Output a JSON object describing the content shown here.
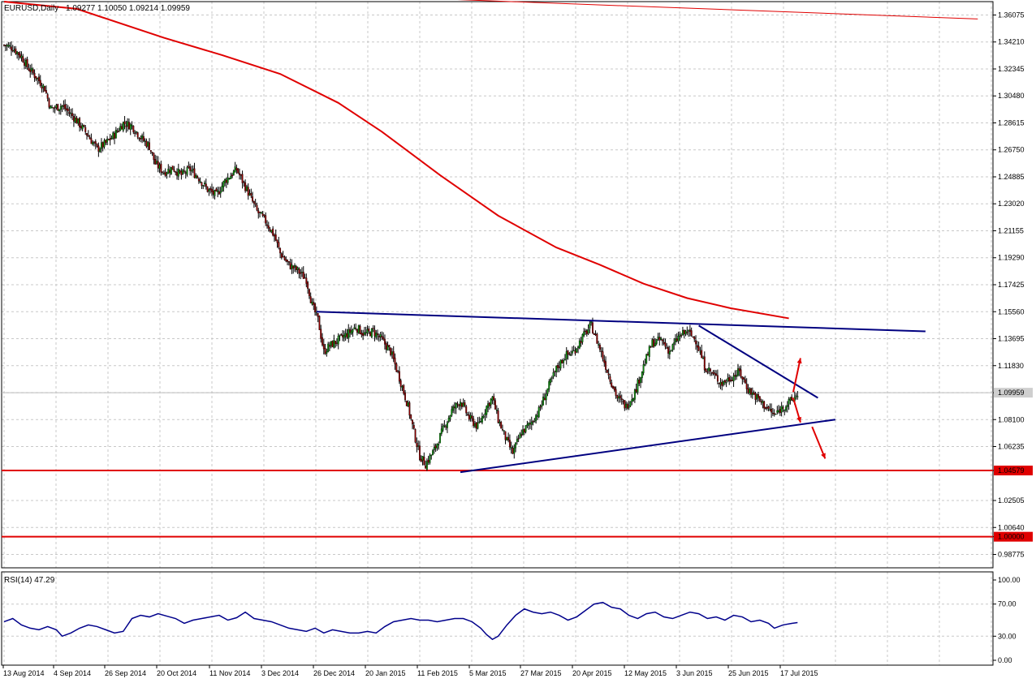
{
  "header": {
    "symbol": "EURUSD,Daily",
    "ohlc": "1.09277 1.10050 1.09214 1.09959"
  },
  "colors": {
    "bull": "#0a8a0a",
    "bear": "#8b0000",
    "ma": "#e00000",
    "trend": "#000080",
    "rsi": "#00008b",
    "grid": "#c8c8c8"
  },
  "chart_data": [
    {
      "type": "candlestick",
      "title": "EURUSD,Daily",
      "y_ticks": [
        "1.36075",
        "1.34210",
        "1.32345",
        "1.30480",
        "1.28615",
        "1.26750",
        "1.24885",
        "1.23020",
        "1.21155",
        "1.19290",
        "1.17425",
        "1.15560",
        "1.13695",
        "1.11830",
        "1.09959",
        "1.08100",
        "1.06235",
        "1.04579",
        "1.02505",
        "1.00640",
        "1.00000",
        "0.98775"
      ],
      "ylim": [
        0.9785,
        1.37
      ],
      "x_ticks": [
        "13 Aug 2014",
        "4 Sep 2014",
        "26 Sep 2014",
        "20 Oct 2014",
        "11 Nov 2014",
        "3 Dec 2014",
        "26 Dec 2014",
        "20 Jan 2015",
        "11 Feb 2015",
        "5 Mar 2015",
        "27 Mar 2015",
        "20 Apr 2015",
        "12 May 2015",
        "3 Jun 2015",
        "25 Jun 2015",
        "17 Jul 2015"
      ],
      "current_price": 1.09959,
      "horizontal_levels": [
        1.04579,
        1.0
      ],
      "close_path": [
        [
          0,
          1.34
        ],
        [
          6,
          1.338
        ],
        [
          12,
          1.332
        ],
        [
          16,
          1.325
        ],
        [
          22,
          1.318
        ],
        [
          28,
          1.31
        ],
        [
          32,
          1.296
        ],
        [
          40,
          1.298
        ],
        [
          48,
          1.29
        ],
        [
          56,
          1.28
        ],
        [
          64,
          1.268
        ],
        [
          70,
          1.272
        ],
        [
          76,
          1.278
        ],
        [
          82,
          1.286
        ],
        [
          88,
          1.284
        ],
        [
          94,
          1.276
        ],
        [
          100,
          1.27
        ],
        [
          104,
          1.258
        ],
        [
          110,
          1.252
        ],
        [
          116,
          1.255
        ],
        [
          122,
          1.25
        ],
        [
          128,
          1.254
        ],
        [
          134,
          1.248
        ],
        [
          140,
          1.24
        ],
        [
          146,
          1.236
        ],
        [
          152,
          1.246
        ],
        [
          160,
          1.254
        ],
        [
          168,
          1.238
        ],
        [
          174,
          1.225
        ],
        [
          180,
          1.218
        ],
        [
          186,
          1.208
        ],
        [
          190,
          1.196
        ],
        [
          196,
          1.188
        ],
        [
          202,
          1.184
        ],
        [
          208,
          1.178
        ],
        [
          212,
          1.16
        ],
        [
          216,
          1.15
        ],
        [
          220,
          1.128
        ],
        [
          224,
          1.132
        ],
        [
          230,
          1.136
        ],
        [
          236,
          1.14
        ],
        [
          242,
          1.145
        ],
        [
          248,
          1.14
        ],
        [
          254,
          1.142
        ],
        [
          260,
          1.136
        ],
        [
          266,
          1.128
        ],
        [
          272,
          1.11
        ],
        [
          278,
          1.09
        ],
        [
          282,
          1.072
        ],
        [
          286,
          1.056
        ],
        [
          290,
          1.05
        ],
        [
          296,
          1.06
        ],
        [
          302,
          1.074
        ],
        [
          308,
          1.087
        ],
        [
          314,
          1.094
        ],
        [
          320,
          1.082
        ],
        [
          326,
          1.076
        ],
        [
          332,
          1.09
        ],
        [
          336,
          1.096
        ],
        [
          340,
          1.081
        ],
        [
          346,
          1.066
        ],
        [
          350,
          1.058
        ],
        [
          356,
          1.072
        ],
        [
          362,
          1.078
        ],
        [
          368,
          1.087
        ],
        [
          374,
          1.102
        ],
        [
          380,
          1.116
        ],
        [
          386,
          1.125
        ],
        [
          392,
          1.128
        ],
        [
          398,
          1.138
        ],
        [
          404,
          1.146
        ],
        [
          410,
          1.13
        ],
        [
          416,
          1.112
        ],
        [
          422,
          1.096
        ],
        [
          428,
          1.09
        ],
        [
          434,
          1.1
        ],
        [
          440,
          1.118
        ],
        [
          446,
          1.134
        ],
        [
          452,
          1.136
        ],
        [
          458,
          1.128
        ],
        [
          464,
          1.138
        ],
        [
          470,
          1.142
        ],
        [
          476,
          1.136
        ],
        [
          482,
          1.118
        ],
        [
          488,
          1.112
        ],
        [
          494,
          1.106
        ],
        [
          500,
          1.11
        ],
        [
          506,
          1.114
        ],
        [
          512,
          1.102
        ],
        [
          518,
          1.096
        ],
        [
          524,
          1.09
        ],
        [
          530,
          1.084
        ],
        [
          536,
          1.09
        ],
        [
          542,
          1.094
        ],
        [
          546,
          1.099
        ]
      ],
      "moving_average": [
        [
          0,
          1.37
        ],
        [
          50,
          1.365
        ],
        [
          110,
          1.345
        ],
        [
          150,
          1.333
        ],
        [
          190,
          1.32
        ],
        [
          230,
          1.3
        ],
        [
          260,
          1.28
        ],
        [
          300,
          1.25
        ],
        [
          340,
          1.222
        ],
        [
          380,
          1.2
        ],
        [
          410,
          1.188
        ],
        [
          440,
          1.175
        ],
        [
          470,
          1.165
        ],
        [
          500,
          1.158
        ],
        [
          540,
          1.151
        ]
      ],
      "trend_lines": [
        {
          "from": [
            215,
            1.1556
          ],
          "to": [
            634,
            1.142
          ]
        },
        {
          "from": [
            314,
            1.0446
          ],
          "to": [
            572,
            1.081
          ]
        },
        {
          "from": [
            478,
            1.146
          ],
          "to": [
            560,
            1.096
          ]
        }
      ],
      "long_term_line": {
        "from": [
          296,
          1.372
        ],
        "to": [
          670,
          1.358
        ]
      },
      "arrows": [
        {
          "from": [
            543,
            1.1
          ],
          "to": [
            548,
            1.1235
          ]
        },
        {
          "from": [
            543,
            1.096
          ],
          "to": [
            548,
            1.079
          ]
        },
        {
          "from": [
            556,
            1.076
          ],
          "to": [
            565,
            1.054
          ]
        }
      ]
    },
    {
      "type": "line",
      "title": "RSI(14) 47.29",
      "y_ticks": [
        "100.00",
        "70.00",
        "30.00",
        "0.00"
      ],
      "ylim": [
        0,
        100
      ],
      "values": [
        [
          0,
          48
        ],
        [
          6,
          52
        ],
        [
          12,
          44
        ],
        [
          18,
          40
        ],
        [
          24,
          38
        ],
        [
          30,
          42
        ],
        [
          36,
          38
        ],
        [
          40,
          30
        ],
        [
          46,
          34
        ],
        [
          52,
          40
        ],
        [
          58,
          44
        ],
        [
          64,
          42
        ],
        [
          70,
          38
        ],
        [
          76,
          34
        ],
        [
          82,
          36
        ],
        [
          88,
          52
        ],
        [
          94,
          56
        ],
        [
          100,
          54
        ],
        [
          106,
          58
        ],
        [
          112,
          55
        ],
        [
          118,
          52
        ],
        [
          124,
          46
        ],
        [
          130,
          50
        ],
        [
          136,
          52
        ],
        [
          142,
          54
        ],
        [
          148,
          56
        ],
        [
          154,
          50
        ],
        [
          160,
          53
        ],
        [
          166,
          60
        ],
        [
          172,
          52
        ],
        [
          178,
          50
        ],
        [
          184,
          48
        ],
        [
          190,
          44
        ],
        [
          196,
          40
        ],
        [
          202,
          38
        ],
        [
          208,
          36
        ],
        [
          214,
          40
        ],
        [
          220,
          34
        ],
        [
          226,
          38
        ],
        [
          232,
          36
        ],
        [
          238,
          34
        ],
        [
          244,
          34
        ],
        [
          250,
          36
        ],
        [
          256,
          34
        ],
        [
          262,
          42
        ],
        [
          268,
          48
        ],
        [
          274,
          50
        ],
        [
          280,
          52
        ],
        [
          286,
          50
        ],
        [
          292,
          50
        ],
        [
          298,
          48
        ],
        [
          304,
          50
        ],
        [
          310,
          52
        ],
        [
          316,
          52
        ],
        [
          322,
          48
        ],
        [
          328,
          40
        ],
        [
          332,
          32
        ],
        [
          336,
          26
        ],
        [
          340,
          30
        ],
        [
          346,
          44
        ],
        [
          352,
          56
        ],
        [
          358,
          64
        ],
        [
          364,
          60
        ],
        [
          370,
          58
        ],
        [
          376,
          60
        ],
        [
          382,
          56
        ],
        [
          388,
          50
        ],
        [
          394,
          54
        ],
        [
          400,
          62
        ],
        [
          406,
          70
        ],
        [
          412,
          72
        ],
        [
          418,
          66
        ],
        [
          424,
          64
        ],
        [
          430,
          56
        ],
        [
          436,
          52
        ],
        [
          442,
          58
        ],
        [
          448,
          60
        ],
        [
          454,
          54
        ],
        [
          460,
          52
        ],
        [
          466,
          56
        ],
        [
          472,
          60
        ],
        [
          478,
          58
        ],
        [
          484,
          52
        ],
        [
          490,
          54
        ],
        [
          496,
          50
        ],
        [
          502,
          56
        ],
        [
          508,
          54
        ],
        [
          514,
          48
        ],
        [
          520,
          50
        ],
        [
          526,
          46
        ],
        [
          530,
          40
        ],
        [
          536,
          44
        ],
        [
          542,
          46
        ],
        [
          546,
          47
        ]
      ]
    }
  ]
}
